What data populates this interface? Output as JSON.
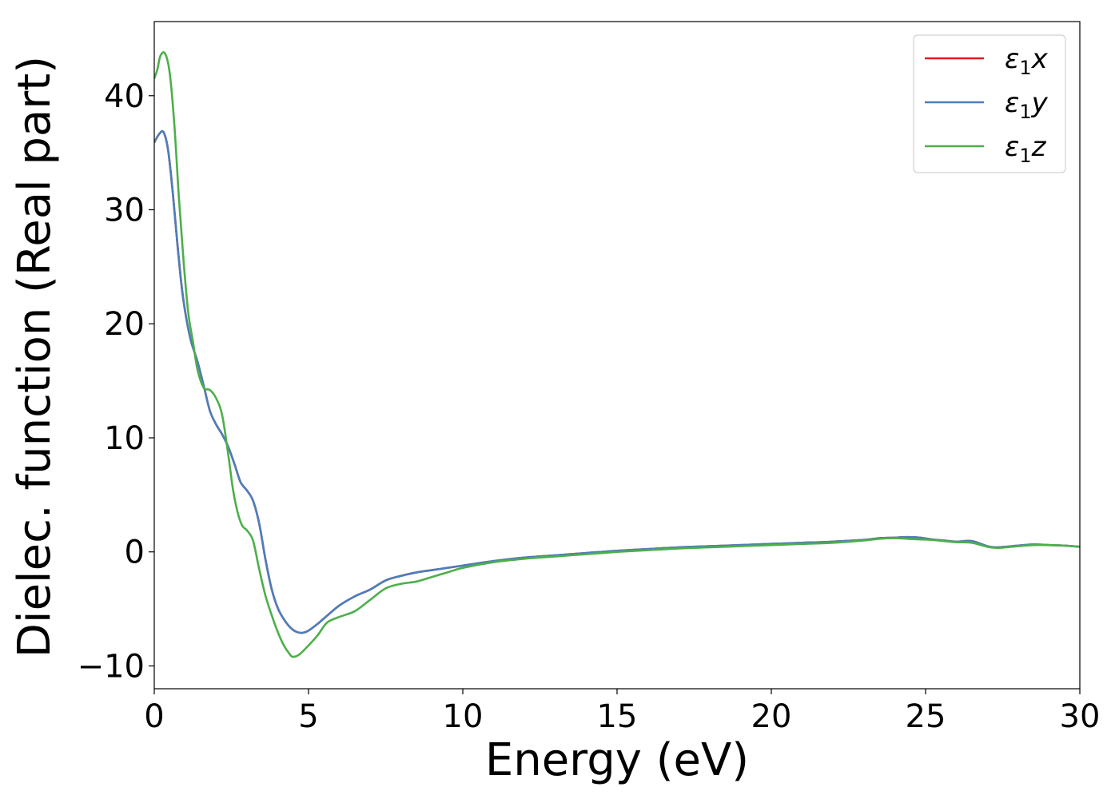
{
  "chart_data": {
    "type": "line",
    "xlabel": "Energy (eV)",
    "ylabel": "Dielec. function (Real part)",
    "xlim": [
      0,
      30
    ],
    "ylim": [
      -12,
      46.5
    ],
    "xticks": [
      0,
      5,
      10,
      15,
      20,
      25,
      30
    ],
    "yticks": [
      -10,
      0,
      10,
      20,
      30,
      40
    ],
    "xtick_labels": [
      "0",
      "5",
      "10",
      "15",
      "20",
      "25",
      "30"
    ],
    "ytick_labels": [
      "−10",
      "0",
      "10",
      "20",
      "30",
      "40"
    ],
    "grid": false,
    "legend_position": "top-right",
    "series": [
      {
        "name": "ε1x",
        "legend_symbol": "ε",
        "legend_sub": "1",
        "legend_var": "x",
        "color": "#e41a1c",
        "x": [
          0,
          0.15,
          0.3,
          0.45,
          0.6,
          0.75,
          0.9,
          1.05,
          1.2,
          1.4,
          1.6,
          1.8,
          2.0,
          2.2,
          2.4,
          2.6,
          2.8,
          3.0,
          3.2,
          3.4,
          3.6,
          3.8,
          4.0,
          4.2,
          4.4,
          4.6,
          4.8,
          5.0,
          5.3,
          5.6,
          6.0,
          6.5,
          7.0,
          7.5,
          8.0,
          8.5,
          9.0,
          9.5,
          10,
          11,
          12,
          13,
          14,
          15,
          16,
          17,
          18,
          19,
          20,
          21,
          22,
          23,
          23.5,
          24,
          24.4,
          24.8,
          25.2,
          25.6,
          26.0,
          26.5,
          27.0,
          27.3,
          27.6,
          28.0,
          28.5,
          29.0,
          29.5,
          30
        ],
        "y": [
          35.9,
          36.6,
          36.8,
          35.2,
          31.5,
          27.0,
          23.0,
          20.3,
          18.4,
          16.7,
          14.6,
          12.4,
          11.2,
          10.3,
          9.2,
          7.7,
          6.1,
          5.4,
          4.5,
          2.5,
          -0.6,
          -3.2,
          -4.9,
          -5.9,
          -6.6,
          -7.0,
          -7.1,
          -6.9,
          -6.3,
          -5.6,
          -4.7,
          -3.9,
          -3.3,
          -2.5,
          -2.1,
          -1.8,
          -1.6,
          -1.4,
          -1.2,
          -0.8,
          -0.5,
          -0.3,
          -0.1,
          0.1,
          0.25,
          0.4,
          0.5,
          0.6,
          0.7,
          0.8,
          0.9,
          1.05,
          1.2,
          1.25,
          1.3,
          1.25,
          1.1,
          1.0,
          0.9,
          0.95,
          0.5,
          0.4,
          0.45,
          0.55,
          0.65,
          0.6,
          0.55,
          0.45
        ]
      },
      {
        "name": "ε1y",
        "legend_symbol": "ε",
        "legend_sub": "1",
        "legend_var": "y",
        "color": "#4a7fbb",
        "x": [
          0,
          0.15,
          0.3,
          0.45,
          0.6,
          0.75,
          0.9,
          1.05,
          1.2,
          1.4,
          1.6,
          1.8,
          2.0,
          2.2,
          2.4,
          2.6,
          2.8,
          3.0,
          3.2,
          3.4,
          3.6,
          3.8,
          4.0,
          4.2,
          4.4,
          4.6,
          4.8,
          5.0,
          5.3,
          5.6,
          6.0,
          6.5,
          7.0,
          7.5,
          8.0,
          8.5,
          9.0,
          9.5,
          10,
          11,
          12,
          13,
          14,
          15,
          16,
          17,
          18,
          19,
          20,
          21,
          22,
          23,
          23.5,
          24,
          24.4,
          24.8,
          25.2,
          25.6,
          26.0,
          26.5,
          27.0,
          27.3,
          27.6,
          28.0,
          28.5,
          29.0,
          29.5,
          30
        ],
        "y": [
          35.9,
          36.6,
          36.8,
          35.2,
          31.5,
          27.0,
          23.0,
          20.3,
          18.4,
          16.7,
          14.6,
          12.4,
          11.2,
          10.3,
          9.2,
          7.7,
          6.1,
          5.4,
          4.5,
          2.5,
          -0.6,
          -3.2,
          -4.9,
          -5.9,
          -6.6,
          -7.0,
          -7.1,
          -6.9,
          -6.3,
          -5.6,
          -4.7,
          -3.9,
          -3.3,
          -2.5,
          -2.1,
          -1.8,
          -1.6,
          -1.4,
          -1.2,
          -0.8,
          -0.5,
          -0.3,
          -0.1,
          0.1,
          0.25,
          0.4,
          0.5,
          0.6,
          0.7,
          0.8,
          0.9,
          1.05,
          1.2,
          1.25,
          1.3,
          1.25,
          1.1,
          1.0,
          0.9,
          0.95,
          0.5,
          0.4,
          0.45,
          0.55,
          0.65,
          0.6,
          0.55,
          0.45
        ]
      },
      {
        "name": "ε1z",
        "legend_symbol": "ε",
        "legend_sub": "1",
        "legend_var": "z",
        "color": "#4daf4a",
        "x": [
          0,
          0.1,
          0.2,
          0.35,
          0.5,
          0.65,
          0.8,
          0.95,
          1.1,
          1.25,
          1.4,
          1.6,
          1.8,
          2.0,
          2.2,
          2.4,
          2.55,
          2.7,
          2.85,
          3.0,
          3.2,
          3.4,
          3.6,
          3.8,
          4.0,
          4.2,
          4.4,
          4.5,
          4.7,
          5.0,
          5.3,
          5.6,
          6.0,
          6.5,
          7.0,
          7.5,
          8.0,
          8.5,
          9.0,
          9.5,
          10,
          11,
          12,
          13,
          14,
          15,
          16,
          17,
          18,
          19,
          20,
          21,
          22,
          23,
          23.5,
          24,
          24.4,
          24.8,
          25.2,
          25.6,
          26.0,
          26.5,
          27.0,
          27.3,
          27.6,
          28.0,
          28.5,
          29.0,
          29.5,
          30
        ],
        "y": [
          41.5,
          42.3,
          43.5,
          43.7,
          42.0,
          37.5,
          31.0,
          25.5,
          21.0,
          18.5,
          16.0,
          14.4,
          14.2,
          13.5,
          12.0,
          8.5,
          5.5,
          3.5,
          2.3,
          1.9,
          1.0,
          -1.5,
          -3.8,
          -5.5,
          -7.0,
          -8.2,
          -9.0,
          -9.2,
          -9.0,
          -8.2,
          -7.3,
          -6.2,
          -5.7,
          -5.2,
          -4.2,
          -3.2,
          -2.8,
          -2.6,
          -2.2,
          -1.8,
          -1.4,
          -0.9,
          -0.6,
          -0.4,
          -0.2,
          0.0,
          0.15,
          0.3,
          0.4,
          0.5,
          0.6,
          0.7,
          0.8,
          1.0,
          1.15,
          1.2,
          1.15,
          1.1,
          1.05,
          0.95,
          0.85,
          0.8,
          0.45,
          0.35,
          0.4,
          0.5,
          0.6,
          0.6,
          0.55,
          0.45
        ]
      }
    ]
  }
}
